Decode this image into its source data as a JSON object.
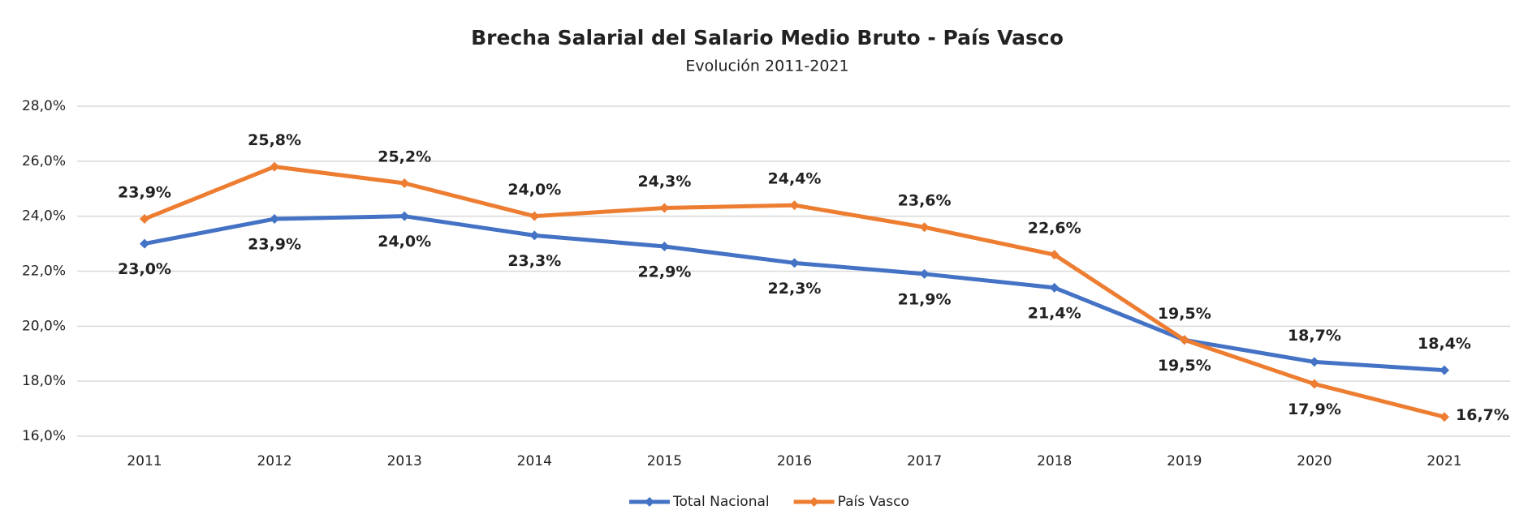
{
  "chart_data": {
    "type": "line",
    "title": "Brecha Salarial del Salario Medio Bruto - País Vasco",
    "subtitle": "Evolución 2011-2021",
    "categories": [
      "2011",
      "2012",
      "2013",
      "2014",
      "2015",
      "2016",
      "2017",
      "2018",
      "2019",
      "2020",
      "2021"
    ],
    "series": [
      {
        "name": "Total Nacional",
        "color": "#4472c4",
        "values": [
          23.0,
          23.9,
          24.0,
          23.3,
          22.9,
          22.3,
          21.9,
          21.4,
          19.5,
          18.7,
          18.4
        ],
        "value_labels": [
          "23,0%",
          "23,9%",
          "24,0%",
          "23,3%",
          "22,9%",
          "22,3%",
          "21,9%",
          "21,4%",
          "19,5%",
          "18,7%",
          "18,4%"
        ]
      },
      {
        "name": "País Vasco",
        "color": "#ed7d31",
        "values": [
          23.9,
          25.8,
          25.2,
          24.0,
          24.3,
          24.4,
          23.6,
          22.6,
          19.5,
          17.9,
          16.7
        ],
        "value_labels": [
          "23,9%",
          "25,8%",
          "25,2%",
          "24,0%",
          "24,3%",
          "24,4%",
          "23,6%",
          "22,6%",
          "19,5%",
          "17,9%",
          "16,7%"
        ]
      }
    ],
    "ylim": [
      16,
      28
    ],
    "yticks": [
      {
        "value": 16,
        "label": "16,0%"
      },
      {
        "value": 18,
        "label": "18,0%"
      },
      {
        "value": 20,
        "label": "20,0%"
      },
      {
        "value": 22,
        "label": "22,0%"
      },
      {
        "value": 24,
        "label": "24,0%"
      },
      {
        "value": 26,
        "label": "26,0%"
      },
      {
        "value": 28,
        "label": "28,0%"
      }
    ],
    "grid": true,
    "legend": "bottom"
  }
}
